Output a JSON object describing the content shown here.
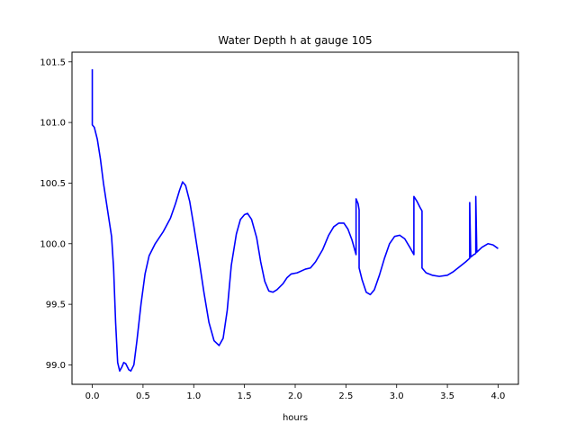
{
  "chart_data": {
    "type": "line",
    "title": "Water Depth h at gauge 105",
    "xlabel": "hours",
    "ylabel": "",
    "xlim": [
      -0.2,
      4.2
    ],
    "ylim": [
      98.84,
      101.58
    ],
    "x_ticks": [
      0.0,
      0.5,
      1.0,
      1.5,
      2.0,
      2.5,
      3.0,
      3.5,
      4.0
    ],
    "x_tick_labels": [
      "0.0",
      "0.5",
      "1.0",
      "1.5",
      "2.0",
      "2.5",
      "3.0",
      "3.5",
      "4.0"
    ],
    "y_ticks": [
      99.0,
      99.5,
      100.0,
      100.5,
      101.0,
      101.5
    ],
    "y_tick_labels": [
      "99.0",
      "99.5",
      "100.0",
      "100.5",
      "101.0",
      "101.5"
    ],
    "grid": false,
    "legend": "none",
    "series": [
      {
        "color": "#0000ff",
        "points": [
          [
            0.0,
            101.44
          ],
          [
            0.0,
            100.98
          ],
          [
            0.02,
            100.96
          ],
          [
            0.05,
            100.86
          ],
          [
            0.08,
            100.7
          ],
          [
            0.11,
            100.5
          ],
          [
            0.15,
            100.28
          ],
          [
            0.19,
            100.06
          ],
          [
            0.21,
            99.8
          ],
          [
            0.23,
            99.35
          ],
          [
            0.25,
            99.02
          ],
          [
            0.27,
            98.95
          ],
          [
            0.29,
            98.98
          ],
          [
            0.31,
            99.02
          ],
          [
            0.33,
            99.01
          ],
          [
            0.36,
            98.96
          ],
          [
            0.38,
            98.95
          ],
          [
            0.41,
            99.0
          ],
          [
            0.44,
            99.2
          ],
          [
            0.48,
            99.5
          ],
          [
            0.52,
            99.75
          ],
          [
            0.56,
            99.9
          ],
          [
            0.62,
            100.0
          ],
          [
            0.7,
            100.1
          ],
          [
            0.77,
            100.21
          ],
          [
            0.82,
            100.33
          ],
          [
            0.86,
            100.44
          ],
          [
            0.89,
            100.51
          ],
          [
            0.92,
            100.48
          ],
          [
            0.96,
            100.35
          ],
          [
            1.0,
            100.15
          ],
          [
            1.05,
            99.88
          ],
          [
            1.1,
            99.6
          ],
          [
            1.15,
            99.35
          ],
          [
            1.2,
            99.2
          ],
          [
            1.25,
            99.16
          ],
          [
            1.29,
            99.22
          ],
          [
            1.33,
            99.45
          ],
          [
            1.37,
            99.82
          ],
          [
            1.42,
            100.08
          ],
          [
            1.46,
            100.2
          ],
          [
            1.5,
            100.24
          ],
          [
            1.53,
            100.25
          ],
          [
            1.57,
            100.2
          ],
          [
            1.62,
            100.05
          ],
          [
            1.66,
            99.85
          ],
          [
            1.7,
            99.69
          ],
          [
            1.74,
            99.61
          ],
          [
            1.78,
            99.6
          ],
          [
            1.82,
            99.62
          ],
          [
            1.88,
            99.67
          ],
          [
            1.92,
            99.72
          ],
          [
            1.96,
            99.75
          ],
          [
            2.02,
            99.76
          ],
          [
            2.1,
            99.79
          ],
          [
            2.15,
            99.8
          ],
          [
            2.2,
            99.85
          ],
          [
            2.27,
            99.95
          ],
          [
            2.33,
            100.07
          ],
          [
            2.38,
            100.14
          ],
          [
            2.43,
            100.17
          ],
          [
            2.48,
            100.17
          ],
          [
            2.52,
            100.12
          ],
          [
            2.56,
            100.03
          ],
          [
            2.59,
            99.94
          ],
          [
            2.6,
            99.91
          ],
          [
            2.6,
            100.37
          ],
          [
            2.62,
            100.33
          ],
          [
            2.63,
            100.28
          ],
          [
            2.63,
            99.8
          ],
          [
            2.66,
            99.7
          ],
          [
            2.7,
            99.6
          ],
          [
            2.74,
            99.58
          ],
          [
            2.78,
            99.62
          ],
          [
            2.83,
            99.74
          ],
          [
            2.88,
            99.88
          ],
          [
            2.93,
            100.0
          ],
          [
            2.98,
            100.06
          ],
          [
            3.03,
            100.07
          ],
          [
            3.08,
            100.04
          ],
          [
            3.13,
            99.97
          ],
          [
            3.17,
            99.91
          ],
          [
            3.17,
            100.39
          ],
          [
            3.2,
            100.35
          ],
          [
            3.23,
            100.3
          ],
          [
            3.25,
            100.27
          ],
          [
            3.25,
            99.8
          ],
          [
            3.29,
            99.76
          ],
          [
            3.35,
            99.74
          ],
          [
            3.42,
            99.73
          ],
          [
            3.5,
            99.74
          ],
          [
            3.56,
            99.77
          ],
          [
            3.62,
            99.81
          ],
          [
            3.68,
            99.85
          ],
          [
            3.72,
            99.88
          ],
          [
            3.72,
            100.34
          ],
          [
            3.73,
            99.89
          ],
          [
            3.76,
            99.91
          ],
          [
            3.78,
            99.92
          ],
          [
            3.78,
            100.39
          ],
          [
            3.79,
            99.93
          ],
          [
            3.84,
            99.97
          ],
          [
            3.9,
            100.0
          ],
          [
            3.95,
            99.99
          ],
          [
            4.0,
            99.96
          ]
        ]
      }
    ]
  }
}
